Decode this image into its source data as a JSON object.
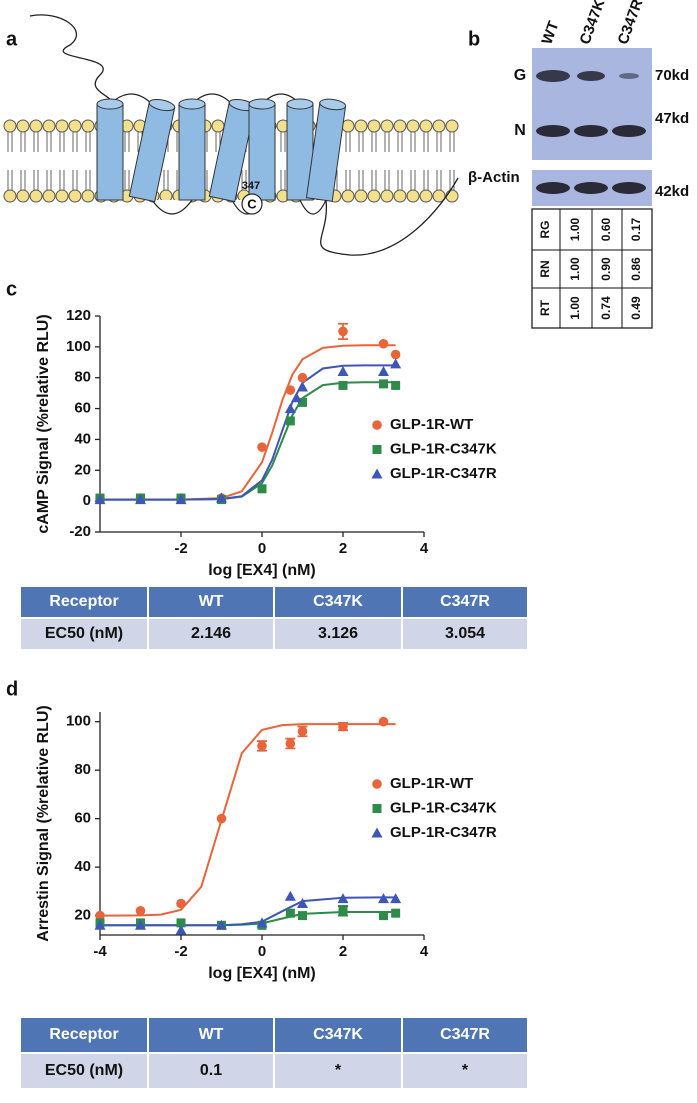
{
  "panel_a": {
    "label": "a",
    "residue_number": "347",
    "residue": "C"
  },
  "panel_b": {
    "label": "b",
    "lanes": [
      "WT",
      "C347K",
      "C347R"
    ],
    "bands": [
      "G",
      "N"
    ],
    "band_sizes": [
      "70kd",
      "47kd"
    ],
    "loading_control": "β-Actin",
    "loading_size": "42kd",
    "quant": {
      "rows": [
        "RG",
        "RN",
        "RT"
      ],
      "values": [
        [
          "1.00",
          "0.60",
          "0.17"
        ],
        [
          "1.00",
          "0.90",
          "0.86"
        ],
        [
          "1.00",
          "0.74",
          "0.49"
        ]
      ]
    }
  },
  "chart_data": [
    {
      "panel": "c",
      "type": "scatter",
      "ylabel": "cAMP Signal (%relative RLU)",
      "xlabel": "log [EX4] (nM)",
      "xlim": [
        -4,
        4
      ],
      "xticks": [
        -2,
        0,
        2,
        4
      ],
      "ylim": [
        -20,
        120
      ],
      "yticks": [
        -20,
        0,
        20,
        40,
        60,
        80,
        100,
        120
      ],
      "legend": "right",
      "curve_x": [
        -4,
        -3,
        -2,
        -1,
        -0.5,
        0,
        0.25,
        0.5,
        0.75,
        1,
        1.5,
        2,
        2.5,
        3,
        3.3
      ],
      "series": [
        {
          "name": "GLP-1R-WT",
          "color": "#e8643a",
          "marker": "circle",
          "x": [
            -4,
            -3,
            -2,
            -1,
            0,
            0.7,
            1,
            2,
            3,
            3.3
          ],
          "values": [
            2,
            2,
            2,
            2,
            35,
            72,
            80,
            110,
            102,
            95
          ],
          "errors": [
            null,
            null,
            null,
            null,
            null,
            null,
            null,
            5,
            null,
            null
          ],
          "curve": [
            1,
            1,
            1,
            2,
            6.4,
            25.2,
            44.1,
            65.3,
            82,
            92,
            99.3,
            100.7,
            101,
            101,
            101
          ]
        },
        {
          "name": "GLP-1R-C347K",
          "color": "#2e8b4a",
          "marker": "square",
          "x": [
            -4,
            -3,
            -2,
            -1,
            0,
            0.7,
            1,
            2,
            3,
            3.3
          ],
          "values": [
            2,
            2,
            2,
            1,
            8,
            52,
            64,
            75,
            76,
            75
          ],
          "errors": [
            null,
            null,
            null,
            null,
            null,
            null,
            null,
            null,
            null,
            null
          ],
          "curve": [
            1,
            1,
            1,
            1.3,
            2.9,
            11.6,
            23,
            39.4,
            55.7,
            66.8,
            75.2,
            76.7,
            77,
            77,
            77
          ]
        },
        {
          "name": "GLP-1R-C347R",
          "color": "#3e56b8",
          "marker": "triangle",
          "x": [
            -4,
            -3,
            -2,
            -1,
            0.7,
            0.85,
            1,
            2,
            3,
            3.3
          ],
          "values": [
            1,
            1,
            1,
            2,
            60,
            67,
            74,
            84,
            84,
            89
          ],
          "errors": [
            null,
            null,
            null,
            null,
            null,
            null,
            null,
            null,
            null,
            null
          ],
          "curve": [
            1,
            1,
            1,
            1.4,
            3.2,
            13.5,
            26.7,
            45.7,
            64.2,
            76.7,
            86,
            87.7,
            88,
            88,
            88
          ]
        }
      ]
    },
    {
      "panel": "d",
      "type": "scatter",
      "ylabel": "Arrestin Signal (%relative RLU)",
      "xlabel": "log [EX4] (nM)",
      "xlim": [
        -4,
        4
      ],
      "xticks": [
        -4,
        -2,
        0,
        2,
        4
      ],
      "ylim": [
        12,
        104
      ],
      "yticks": [
        20,
        40,
        60,
        80,
        100
      ],
      "legend": "right",
      "curve_x": [
        -4,
        -3,
        -2.5,
        -2,
        -1.5,
        -1,
        -0.5,
        0,
        0.5,
        1,
        2,
        3,
        3.3
      ],
      "series": [
        {
          "name": "GLP-1R-WT",
          "color": "#e8643a",
          "marker": "circle",
          "x": [
            -4,
            -3,
            -2,
            -1,
            0,
            0.7,
            1,
            2,
            3
          ],
          "values": [
            20,
            22,
            25,
            60,
            90,
            91,
            96,
            98,
            100
          ],
          "errors": [
            null,
            null,
            null,
            null,
            2,
            2,
            2,
            1.5,
            null
          ],
          "curve": [
            20,
            20.1,
            20.4,
            22.4,
            31.9,
            59.5,
            87,
            96.6,
            98.6,
            99,
            99,
            99,
            99
          ]
        },
        {
          "name": "GLP-1R-C347K",
          "color": "#2e8b4a",
          "marker": "square",
          "x": [
            -4,
            -3,
            -2,
            -1,
            0,
            0.7,
            1,
            2,
            3,
            3.3
          ],
          "values": [
            17,
            17,
            17,
            16,
            16,
            21,
            20,
            22,
            20,
            21
          ],
          "errors": [
            null,
            null,
            null,
            null,
            null,
            null,
            null,
            2,
            null,
            null
          ],
          "curve": [
            16,
            16,
            16,
            16,
            16,
            16,
            16.2,
            16.8,
            18.8,
            20.7,
            21.5,
            21.5,
            21.5
          ]
        },
        {
          "name": "GLP-1R-C347R",
          "color": "#3e56b8",
          "marker": "triangle",
          "x": [
            -4,
            -3,
            -2,
            -1,
            0,
            0.7,
            1,
            2,
            3,
            3.3
          ],
          "values": [
            16,
            16,
            14,
            16,
            17,
            28,
            25,
            27,
            27,
            27
          ],
          "errors": [
            null,
            null,
            null,
            null,
            null,
            null,
            null,
            null,
            null,
            null
          ],
          "curve": [
            16,
            16,
            16,
            16,
            16,
            16,
            16.4,
            17.5,
            21.8,
            26,
            27.4,
            27.5,
            27.5
          ]
        }
      ]
    }
  ],
  "tables": [
    {
      "header": [
        "Receptor",
        "WT",
        "C347K",
        "C347R"
      ],
      "rows": [
        [
          "EC50 (nM)",
          "2.146",
          "3.126",
          "3.054"
        ]
      ]
    },
    {
      "header": [
        "Receptor",
        "WT",
        "C347K",
        "C347R"
      ],
      "rows": [
        [
          "EC50 (nM)",
          "0.1",
          "*",
          "*"
        ]
      ]
    }
  ]
}
